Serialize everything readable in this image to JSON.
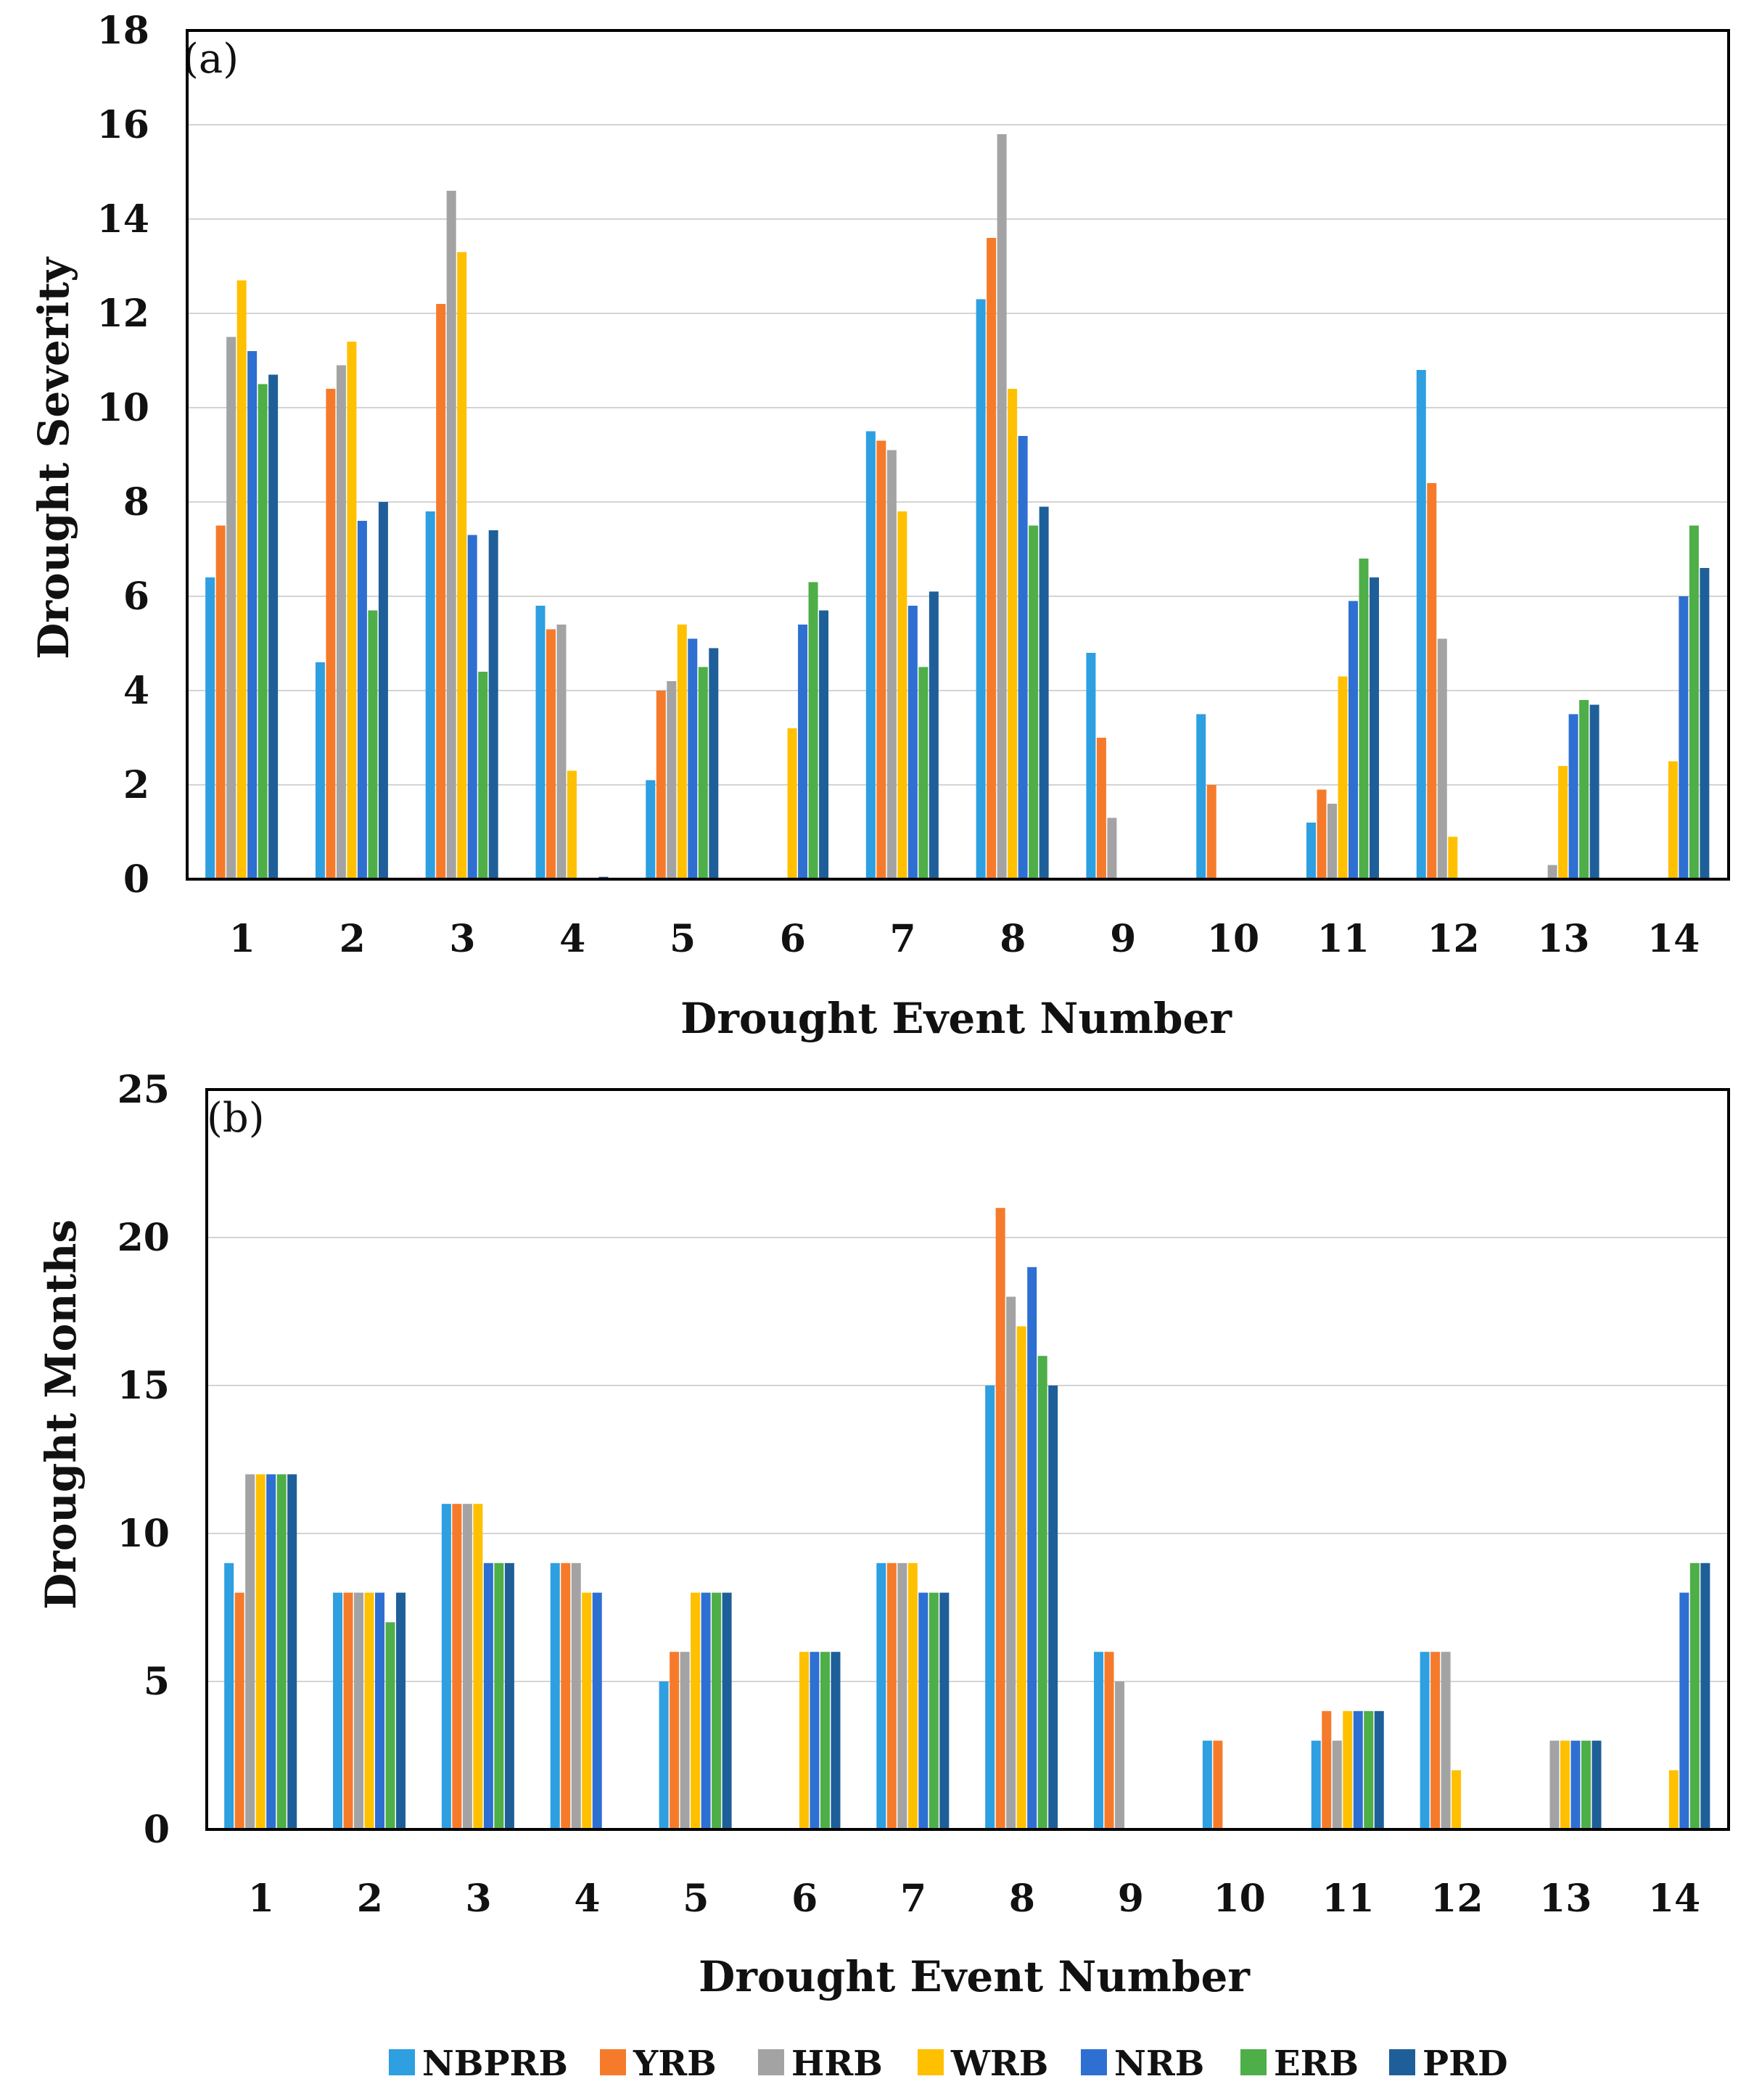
{
  "chart_data": [
    {
      "type": "bar",
      "panel_label": "(a)",
      "xlabel": "Drought Event Number",
      "ylabel": "Drought Severity",
      "ylim": [
        0,
        18
      ],
      "yticks": [
        "0",
        "2",
        "4",
        "6",
        "8",
        "10",
        "12",
        "14",
        "16",
        "18"
      ],
      "grid": true,
      "categories": [
        "1",
        "2",
        "3",
        "4",
        "5",
        "6",
        "7",
        "8",
        "9",
        "10",
        "11",
        "12",
        "13",
        "14"
      ],
      "series": [
        {
          "name": "NBPRB",
          "color": "#2E9FE0",
          "values": [
            6.4,
            4.6,
            7.8,
            5.8,
            2.1,
            0,
            9.5,
            12.3,
            4.8,
            3.5,
            1.2,
            10.8,
            0,
            0
          ]
        },
        {
          "name": "YRB",
          "color": "#F57B2B",
          "values": [
            7.5,
            10.4,
            12.2,
            5.3,
            4.0,
            0,
            9.3,
            13.6,
            3.0,
            2.0,
            1.9,
            8.4,
            0,
            0
          ]
        },
        {
          "name": "HRB",
          "color": "#A3A3A3",
          "values": [
            11.5,
            10.9,
            14.6,
            5.4,
            4.2,
            0,
            9.1,
            15.8,
            1.3,
            0,
            1.6,
            5.1,
            0.3,
            0
          ]
        },
        {
          "name": "WRB",
          "color": "#FFC000",
          "values": [
            12.7,
            11.4,
            13.3,
            2.3,
            5.4,
            3.2,
            7.8,
            10.4,
            0,
            0,
            4.3,
            0.9,
            2.4,
            2.5
          ]
        },
        {
          "name": "NRB",
          "color": "#2E6FD2",
          "values": [
            11.2,
            7.6,
            7.3,
            0,
            5.1,
            5.4,
            5.8,
            9.4,
            0,
            0,
            5.9,
            0,
            3.5,
            6.0
          ]
        },
        {
          "name": "ERB",
          "color": "#4EAE48",
          "values": [
            10.5,
            5.7,
            4.4,
            0,
            4.5,
            6.3,
            4.5,
            7.5,
            0,
            0,
            6.8,
            0,
            3.8,
            7.5
          ]
        },
        {
          "name": "PRD",
          "color": "#1F5F99",
          "values": [
            10.7,
            8.0,
            7.4,
            0.05,
            4.9,
            5.7,
            6.1,
            7.9,
            0,
            0,
            6.4,
            0,
            3.7,
            6.6
          ]
        }
      ]
    },
    {
      "type": "bar",
      "panel_label": "(b)",
      "xlabel": "Drought Event Number",
      "ylabel": "Drought Months",
      "ylim": [
        0,
        25
      ],
      "yticks": [
        "0",
        "5",
        "10",
        "15",
        "20",
        "25"
      ],
      "grid": true,
      "categories": [
        "1",
        "2",
        "3",
        "4",
        "5",
        "6",
        "7",
        "8",
        "9",
        "10",
        "11",
        "12",
        "13",
        "14"
      ],
      "series": [
        {
          "name": "NBPRB",
          "color": "#2E9FE0",
          "values": [
            9,
            8,
            11,
            9,
            5,
            0,
            9,
            15,
            6,
            3,
            3,
            6,
            0,
            0
          ]
        },
        {
          "name": "YRB",
          "color": "#F57B2B",
          "values": [
            8,
            8,
            11,
            9,
            6,
            0,
            9,
            21,
            6,
            3,
            4,
            6,
            0,
            0
          ]
        },
        {
          "name": "HRB",
          "color": "#A3A3A3",
          "values": [
            12,
            8,
            11,
            9,
            6,
            0,
            9,
            18,
            5,
            0,
            3,
            6,
            3,
            0
          ]
        },
        {
          "name": "WRB",
          "color": "#FFC000",
          "values": [
            12,
            8,
            11,
            8,
            8,
            6,
            9,
            17,
            0,
            0,
            4,
            2,
            3,
            2
          ]
        },
        {
          "name": "NRB",
          "color": "#2E6FD2",
          "values": [
            12,
            8,
            9,
            8,
            8,
            6,
            8,
            19,
            0,
            0,
            4,
            0,
            3,
            8
          ]
        },
        {
          "name": "ERB",
          "color": "#4EAE48",
          "values": [
            12,
            7,
            9,
            0,
            8,
            6,
            8,
            16,
            0,
            0,
            4,
            0,
            3,
            9
          ]
        },
        {
          "name": "PRD",
          "color": "#1F5F99",
          "values": [
            12,
            8,
            9,
            0,
            8,
            6,
            8,
            15,
            0,
            0,
            4,
            0,
            3,
            9
          ]
        }
      ]
    }
  ],
  "legend": [
    "NBPRB",
    "YRB",
    "HRB",
    "WRB",
    "NRB",
    "ERB",
    "PRD"
  ]
}
